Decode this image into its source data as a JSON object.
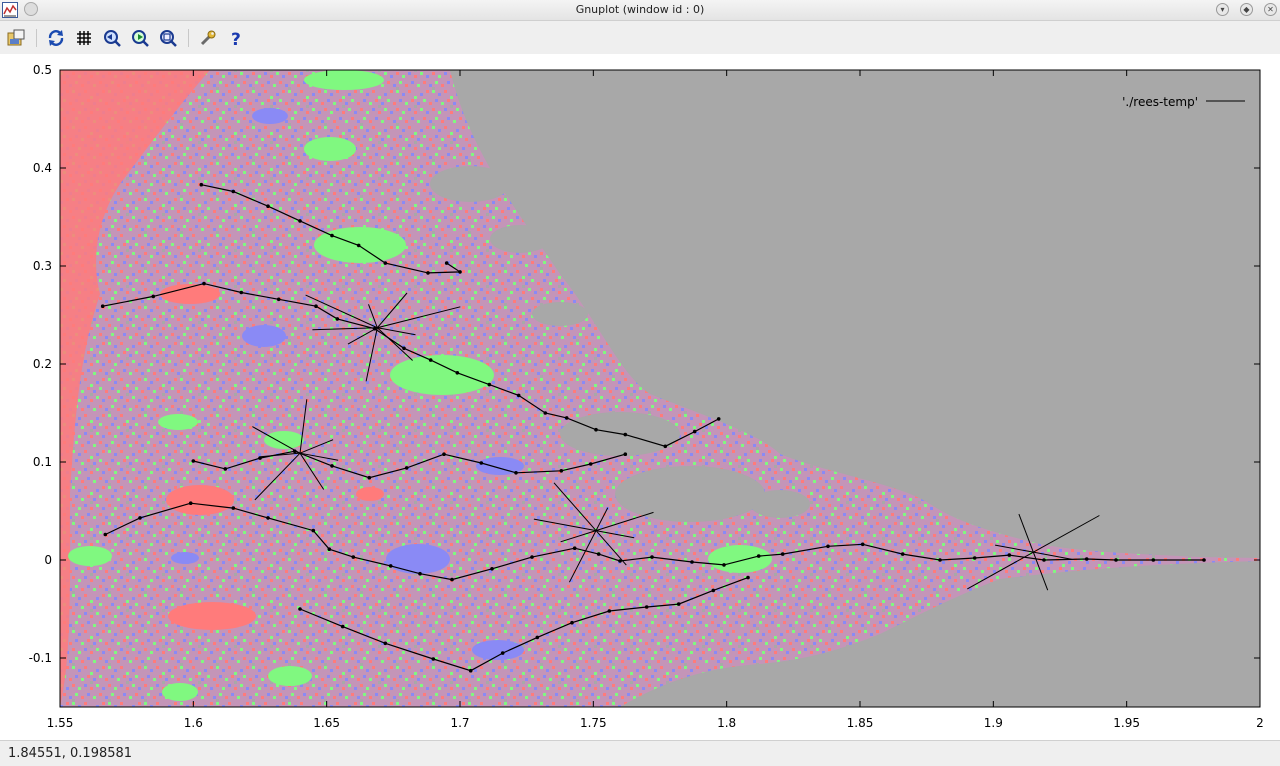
{
  "window": {
    "title": "Gnuplot (window id : 0)"
  },
  "toolbar": {
    "buttons": [
      {
        "name": "export-icon",
        "tooltip": "Export"
      },
      {
        "name": "replot-icon",
        "tooltip": "Replot"
      },
      {
        "name": "grid-icon",
        "tooltip": "Show grid"
      },
      {
        "name": "zoom-previous-icon",
        "tooltip": "Previous zoom"
      },
      {
        "name": "zoom-next-icon",
        "tooltip": "Next zoom"
      },
      {
        "name": "autoscale-icon",
        "tooltip": "Autoscale"
      },
      {
        "name": "settings-icon",
        "tooltip": "Settings"
      },
      {
        "name": "help-icon",
        "tooltip": "Help"
      }
    ]
  },
  "status": {
    "coordinates": "1.84551,  0.198581"
  },
  "chart_data": {
    "type": "line",
    "title": "",
    "xlabel": "",
    "ylabel": "",
    "xlim": [
      1.55,
      2.0
    ],
    "ylim": [
      -0.15,
      0.5
    ],
    "x_ticks": [
      "1.55",
      "1.6",
      "1.65",
      "1.7",
      "1.75",
      "1.8",
      "1.85",
      "1.9",
      "1.95",
      "2"
    ],
    "y_ticks": [
      "0.5",
      "0.4",
      "0.3",
      "0.2",
      "0.1",
      "0",
      "-0.1"
    ],
    "background_colors": {
      "red": "#ff7b7b",
      "green": "#80f880",
      "blue": "#8a8af5",
      "gray": "#a8a8a8"
    },
    "series": [
      {
        "name": "'./rees-temp'",
        "color": "#000000",
        "points": [
          [
            1.567,
            0.026
          ],
          [
            1.58,
            0.043
          ],
          [
            1.599,
            0.058
          ],
          [
            1.615,
            0.053
          ],
          [
            1.628,
            0.043
          ],
          [
            1.645,
            0.03
          ],
          [
            1.651,
            0.011
          ],
          [
            1.66,
            0.003
          ],
          [
            1.674,
            -0.006
          ],
          [
            1.685,
            -0.014
          ],
          [
            1.697,
            -0.02
          ],
          [
            1.712,
            -0.009
          ],
          [
            1.727,
            0.003
          ],
          [
            1.743,
            0.012
          ],
          [
            1.752,
            0.006
          ],
          [
            1.76,
            -0.001
          ],
          [
            1.772,
            0.003
          ],
          [
            1.787,
            -0.002
          ],
          [
            1.799,
            -0.005
          ],
          [
            1.812,
            0.004
          ],
          [
            1.821,
            0.006
          ],
          [
            1.838,
            0.014
          ],
          [
            1.851,
            0.016
          ],
          [
            1.866,
            0.006
          ],
          [
            1.88,
            0.0
          ],
          [
            1.893,
            0.002
          ],
          [
            1.906,
            0.005
          ],
          [
            1.919,
            0.0
          ],
          [
            1.935,
            0.001
          ],
          [
            1.946,
            0.0
          ],
          [
            1.96,
            0.0
          ],
          [
            1.979,
            0.0
          ]
        ]
      },
      {
        "name": "",
        "color": "#000000",
        "points": [
          [
            1.566,
            0.259
          ],
          [
            1.585,
            0.269
          ],
          [
            1.604,
            0.282
          ],
          [
            1.618,
            0.273
          ],
          [
            1.632,
            0.266
          ],
          [
            1.646,
            0.259
          ],
          [
            1.654,
            0.246
          ],
          [
            1.668,
            0.236
          ],
          [
            1.679,
            0.216
          ],
          [
            1.689,
            0.204
          ],
          [
            1.699,
            0.191
          ],
          [
            1.711,
            0.179
          ],
          [
            1.722,
            0.168
          ],
          [
            1.732,
            0.15
          ],
          [
            1.74,
            0.145
          ],
          [
            1.751,
            0.133
          ],
          [
            1.762,
            0.128
          ],
          [
            1.777,
            0.116
          ],
          [
            1.788,
            0.131
          ],
          [
            1.797,
            0.144
          ]
        ]
      },
      {
        "name": "",
        "color": "#000000",
        "points": [
          [
            1.603,
            0.383
          ],
          [
            1.615,
            0.376
          ],
          [
            1.628,
            0.361
          ],
          [
            1.64,
            0.346
          ],
          [
            1.652,
            0.331
          ],
          [
            1.662,
            0.321
          ],
          [
            1.672,
            0.303
          ],
          [
            1.688,
            0.293
          ],
          [
            1.7,
            0.294
          ],
          [
            1.695,
            0.303
          ]
        ]
      },
      {
        "name": "",
        "color": "#000000",
        "points": [
          [
            1.6,
            0.101
          ],
          [
            1.612,
            0.093
          ],
          [
            1.625,
            0.104
          ],
          [
            1.638,
            0.111
          ],
          [
            1.652,
            0.096
          ],
          [
            1.666,
            0.084
          ],
          [
            1.68,
            0.094
          ],
          [
            1.694,
            0.108
          ],
          [
            1.708,
            0.099
          ],
          [
            1.721,
            0.089
          ],
          [
            1.738,
            0.091
          ],
          [
            1.749,
            0.098
          ],
          [
            1.762,
            0.108
          ]
        ]
      },
      {
        "name": "",
        "color": "#000000",
        "points": [
          [
            1.64,
            -0.05
          ],
          [
            1.656,
            -0.068
          ],
          [
            1.672,
            -0.085
          ],
          [
            1.69,
            -0.101
          ],
          [
            1.704,
            -0.113
          ],
          [
            1.716,
            -0.095
          ],
          [
            1.729,
            -0.079
          ],
          [
            1.742,
            -0.064
          ],
          [
            1.756,
            -0.052
          ],
          [
            1.77,
            -0.048
          ],
          [
            1.782,
            -0.045
          ],
          [
            1.795,
            -0.031
          ],
          [
            1.808,
            -0.018
          ]
        ]
      }
    ]
  }
}
